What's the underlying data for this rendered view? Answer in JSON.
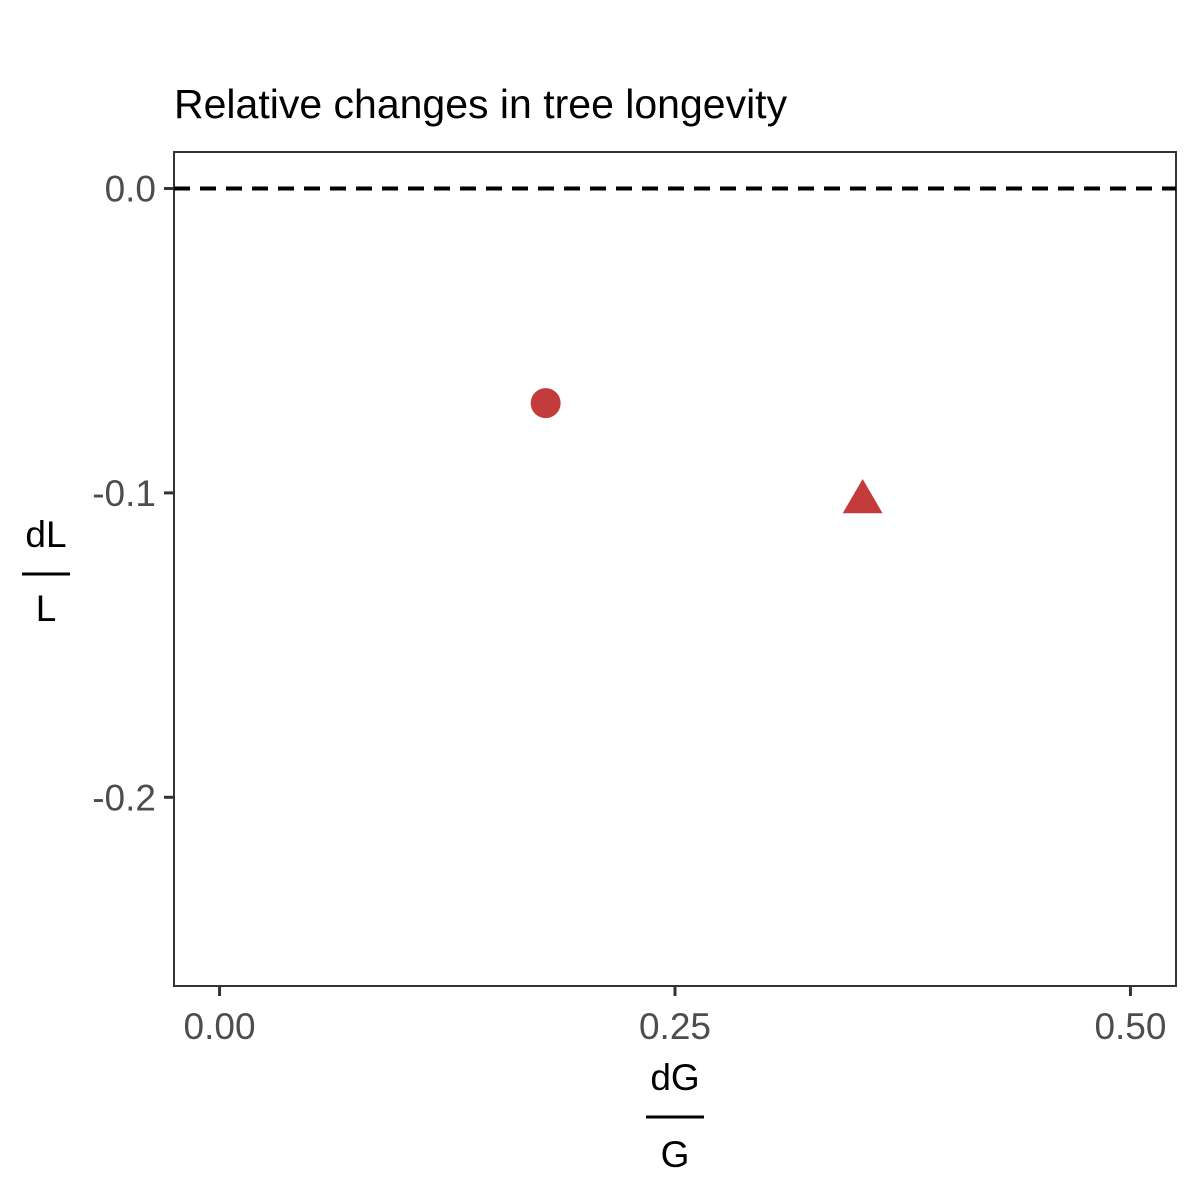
{
  "chart_data": {
    "type": "scatter",
    "title": "Relative changes in tree longevity",
    "xlabel": {
      "numerator": "dG",
      "denominator": "G"
    },
    "ylabel": {
      "numerator": "dL",
      "denominator": "L"
    },
    "xlim": [
      -0.025,
      0.525
    ],
    "ylim": [
      -0.262,
      0.012
    ],
    "xticks": [
      {
        "value": 0.0,
        "label": "0.00"
      },
      {
        "value": 0.25,
        "label": "0.25"
      },
      {
        "value": 0.5,
        "label": "0.50"
      }
    ],
    "yticks": [
      {
        "value": 0.0,
        "label": "0.0"
      },
      {
        "value": -0.1,
        "label": "-0.1"
      },
      {
        "value": -0.2,
        "label": "-0.2"
      }
    ],
    "reference_line": {
      "y": 0.0,
      "style": "dashed",
      "color": "#000000"
    },
    "points": [
      {
        "x": 0.179,
        "y": -0.0705,
        "shape": "circle",
        "color": "#c43b3b"
      },
      {
        "x": 0.353,
        "y": -0.102,
        "shape": "triangle",
        "color": "#c43b3b"
      }
    ],
    "grid": false,
    "legend": "none"
  }
}
